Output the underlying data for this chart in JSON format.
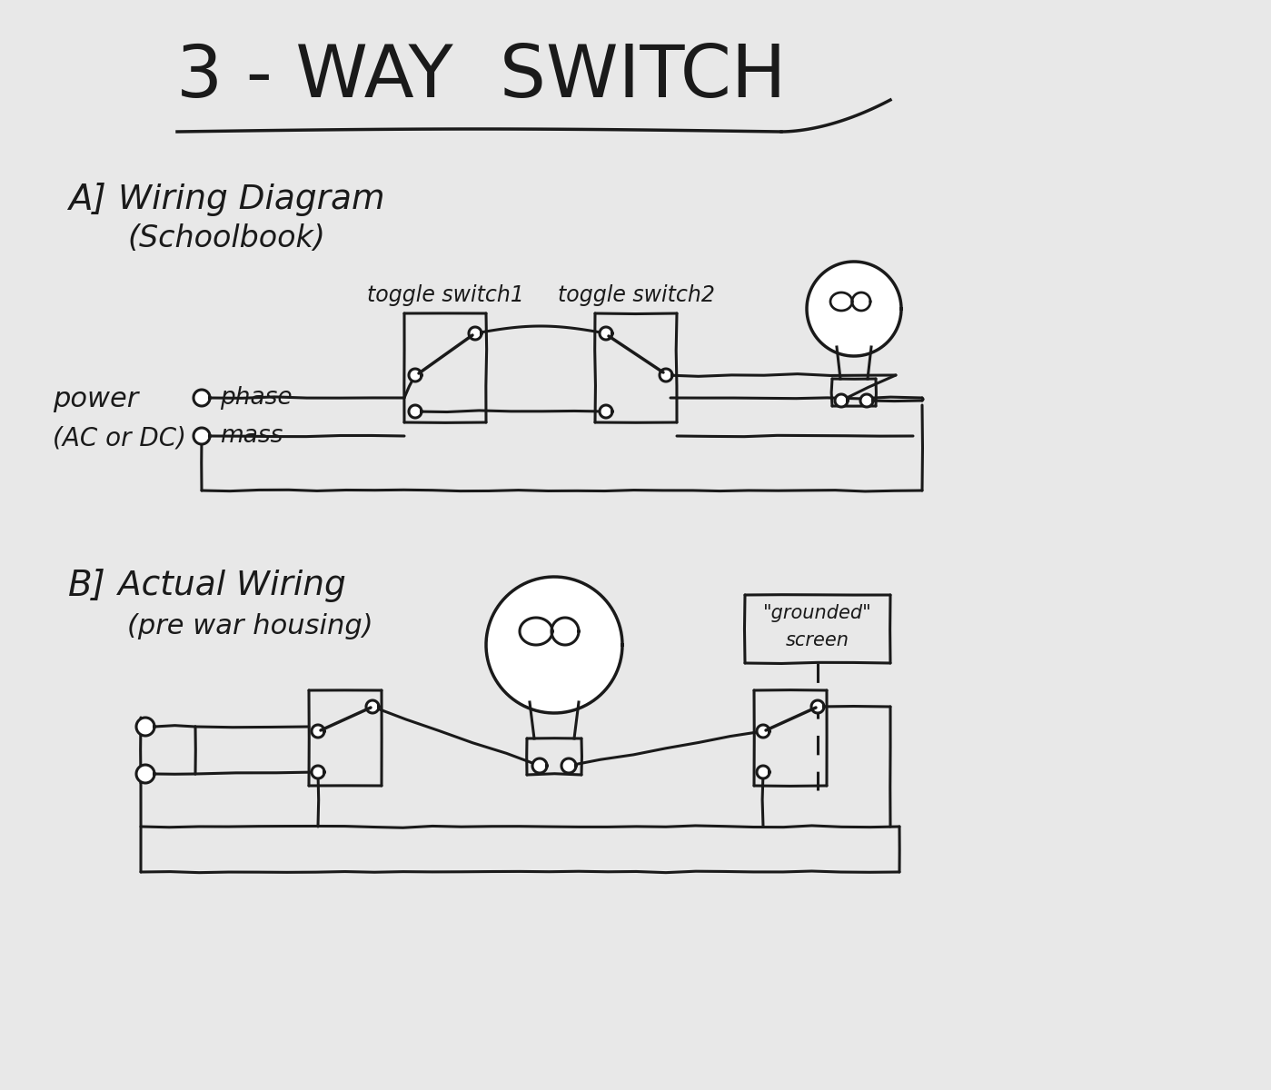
{
  "title": "3 - WAY  SWITCH",
  "section_a_label": "A]",
  "section_a_title": "Wiring Diagram",
  "section_a_subtitle": "(Schoolbook)",
  "section_b_label": "B]",
  "section_b_title": "Actual Wiring",
  "section_b_subtitle": "(pre war housing)",
  "toggle_switch1": "toggle switch1",
  "toggle_switch2": "toggle switch2",
  "power_label": "power",
  "power_sub": "(AC or DC)",
  "phase_label": "phase",
  "mass_label": "mass",
  "grounded_label": "\"grounded\"",
  "screen_label": "screen",
  "bg_color": "#e8e8e8",
  "line_color": "#1a1a1a",
  "lw": 2.2
}
